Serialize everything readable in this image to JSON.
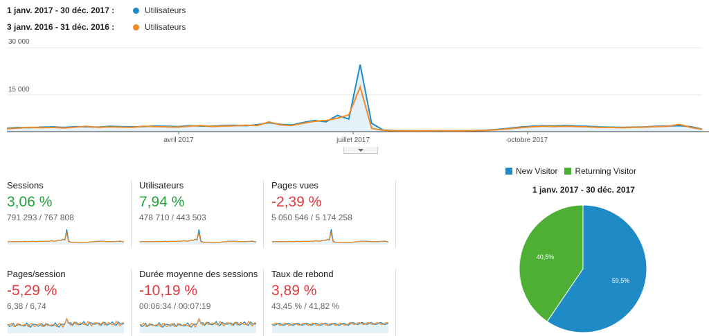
{
  "legend": {
    "current": {
      "range": "1 janv. 2017 - 30 déc. 2017 :",
      "label": "Utilisateurs",
      "color": "#1f8bc6"
    },
    "previous": {
      "range": "3 janv. 2016 - 31 déc. 2016 :",
      "label": "Utilisateurs",
      "color": "#ef8a26"
    }
  },
  "chart_data": [
    {
      "type": "line",
      "ylim": [
        0,
        30000
      ],
      "y_ticks": [
        "30 000",
        "15 000"
      ],
      "x_ticks": [
        "avril 2017",
        "juillet 2017",
        "octobre 2017"
      ],
      "series": [
        {
          "name": "Utilisateurs",
          "period": "1 janv. 2017 - 30 déc. 2017",
          "color": "#1f8bc6",
          "values": [
            1200,
            1500,
            1400,
            1600,
            1700,
            1500,
            1800,
            1700,
            1600,
            1900,
            1800,
            1700,
            1800,
            2000,
            1900,
            1800,
            2100,
            2000,
            1900,
            2200,
            2300,
            2100,
            2500,
            3200,
            2600,
            2400,
            3300,
            4000,
            3500,
            5800,
            4500,
            24000,
            3000,
            600,
            400,
            350,
            300,
            300,
            320,
            300,
            350,
            400,
            500,
            800,
            1200,
            1600,
            1900,
            2100,
            2000,
            2200,
            2000,
            1900,
            1700,
            1600,
            1500,
            1600,
            1700,
            1900,
            2000,
            2100,
            1800,
            900
          ]
        },
        {
          "name": "Utilisateurs",
          "period": "3 janv. 2016 - 31 déc. 2016",
          "color": "#ef8a26",
          "values": [
            1000,
            1300,
            1500,
            1400,
            1500,
            1300,
            1600,
            1900,
            1500,
            1700,
            1600,
            1500,
            1900,
            1800,
            1700,
            1600,
            1900,
            2200,
            1800,
            2000,
            2100,
            2300,
            2200,
            3500,
            2400,
            2200,
            3000,
            3700,
            4000,
            4800,
            6000,
            16000,
            1200,
            500,
            300,
            300,
            280,
            300,
            350,
            320,
            300,
            380,
            450,
            700,
            1000,
            1400,
            1700,
            1900,
            1800,
            1900,
            1800,
            1700,
            1500,
            1500,
            1400,
            1500,
            1600,
            1800,
            1900,
            2600,
            1500,
            800
          ]
        }
      ]
    },
    {
      "type": "pie",
      "title": "1 janv. 2017 - 30 déc. 2017",
      "slices": [
        {
          "name": "New Visitor",
          "value": 59.5,
          "label": "59,5%",
          "color": "#1f8bc6"
        },
        {
          "name": "Returning Visitor",
          "value": 40.5,
          "label": "40,5%",
          "color": "#4db035"
        }
      ]
    }
  ],
  "metrics": [
    {
      "title": "Sessions",
      "pct": "3,06 %",
      "sign": "pos",
      "values": "791 293 / 767 808",
      "spark": "spike"
    },
    {
      "title": "Utilisateurs",
      "pct": "7,94 %",
      "sign": "pos",
      "values": "478 710 / 443 503",
      "spark": "spike"
    },
    {
      "title": "Pages vues",
      "pct": "-2,39 %",
      "sign": "neg",
      "values": "5 050 546 / 5 174 258",
      "spark": "spike"
    },
    {
      "title": "Pages/session",
      "pct": "-5,29 %",
      "sign": "neg",
      "values": "6,38 / 6,74",
      "spark": "noisy"
    },
    {
      "title": "Durée moyenne des sessions",
      "pct": "-10,19 %",
      "sign": "neg",
      "values": "00:06:34 / 00:07:19",
      "spark": "noisy"
    },
    {
      "title": "Taux de rebond",
      "pct": "3,89 %",
      "sign": "pos",
      "values": "43,45 % / 41,82 %",
      "spark": "flat"
    }
  ]
}
